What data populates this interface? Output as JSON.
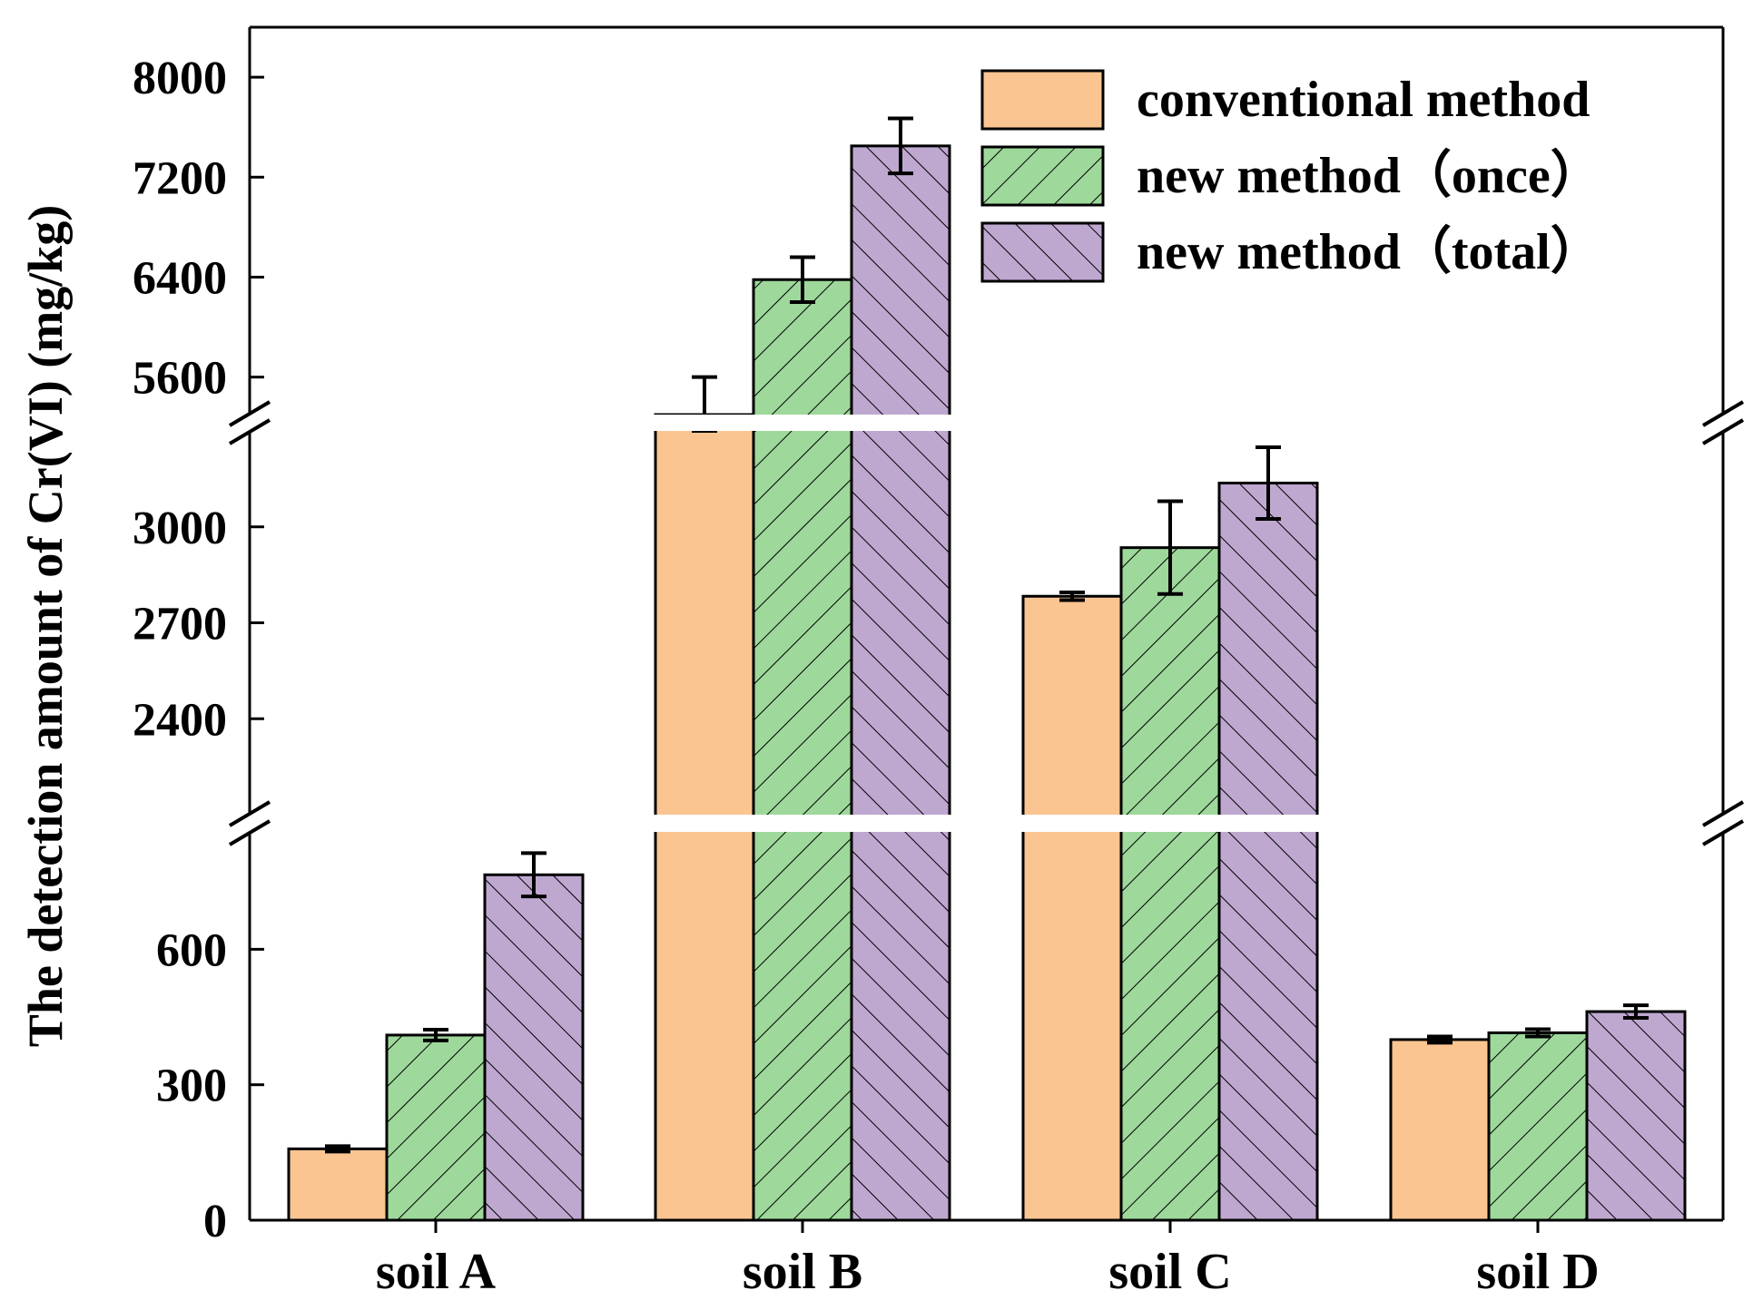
{
  "chart_data": {
    "type": "bar",
    "title": "",
    "xlabel": "",
    "ylabel": "The detection amount of Cr(VI) (mg/kg)",
    "categories": [
      "soil A",
      "soil B",
      "soil C",
      "soil D"
    ],
    "broken_axis": true,
    "segments": [
      {
        "range": [
          0,
          860
        ],
        "ticks": [
          0,
          300,
          600
        ]
      },
      {
        "range": [
          2100,
          3300
        ],
        "ticks": [
          2400,
          2700,
          3000
        ]
      },
      {
        "range": [
          5300,
          8400
        ],
        "ticks": [
          5600,
          6400,
          7200,
          8000
        ]
      }
    ],
    "series": [
      {
        "name": "conventional method",
        "color": "#FBC592",
        "pattern": "none",
        "values": [
          158,
          5300,
          2783,
          400
        ],
        "errors": [
          6,
          300,
          12,
          7
        ]
      },
      {
        "name": "new method（once）",
        "color": "#9ED89B",
        "pattern": "forward-hatch",
        "values": [
          410,
          6380,
          2935,
          415
        ],
        "errors": [
          12,
          180,
          145,
          8
        ]
      },
      {
        "name": "new method（total）",
        "color": "#BEA8D0",
        "pattern": "back-hatch",
        "values": [
          765,
          7450,
          3137,
          462
        ],
        "errors": [
          48,
          220,
          112,
          14
        ]
      }
    ],
    "legend_position": "top-right"
  }
}
